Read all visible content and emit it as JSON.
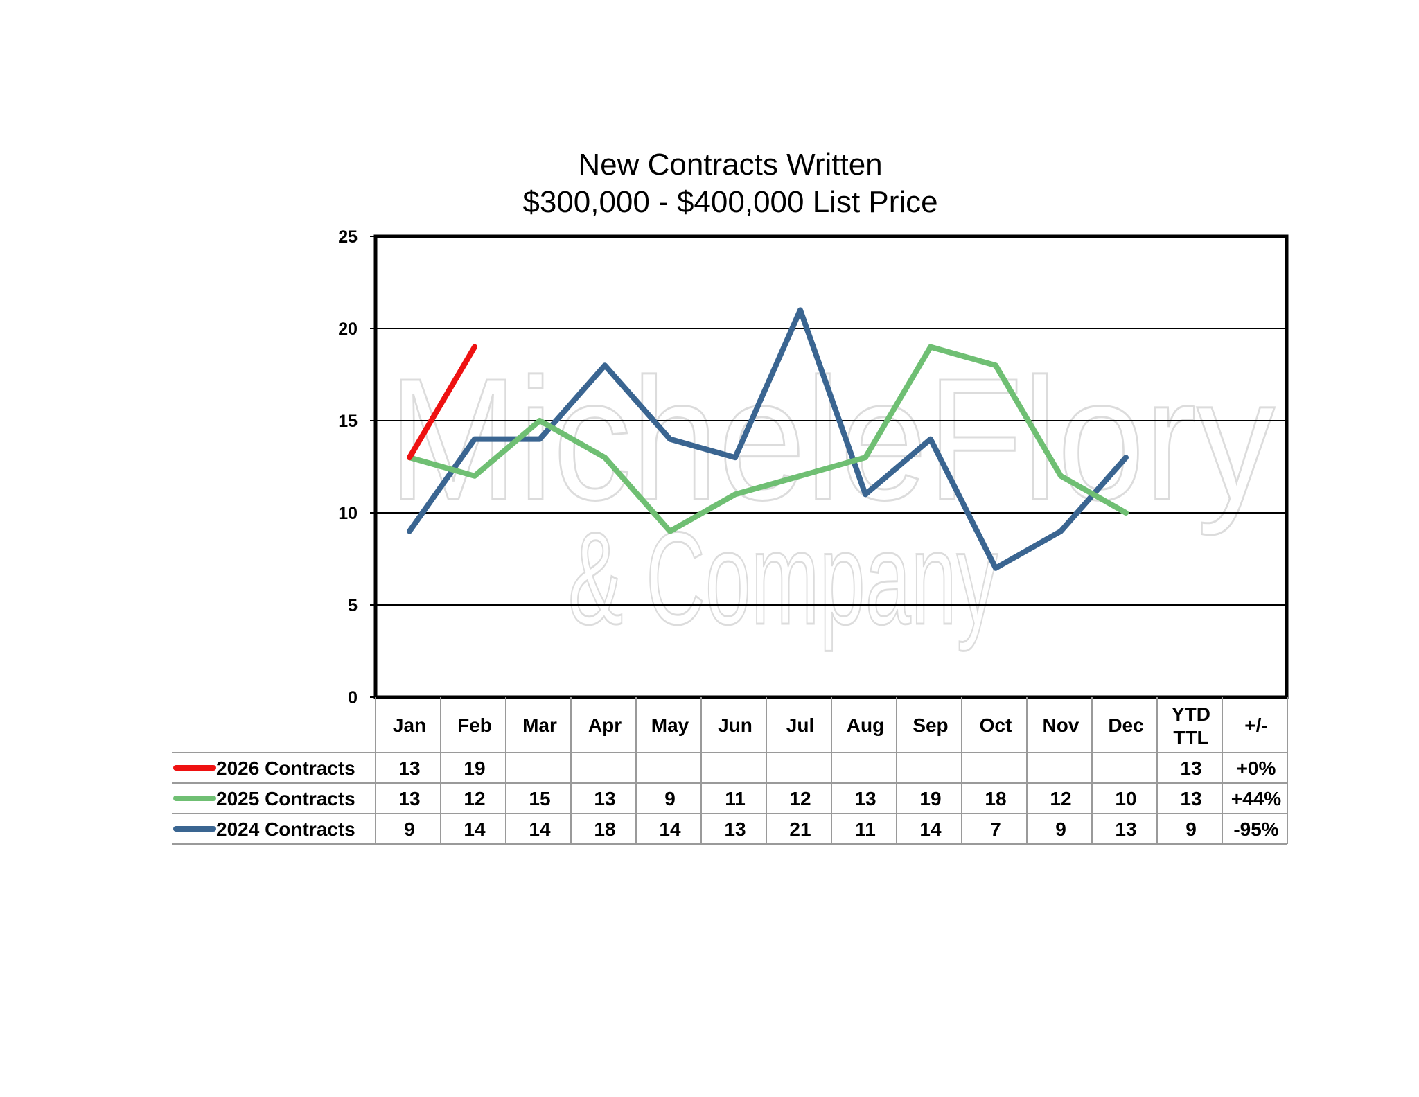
{
  "chart_data": {
    "type": "line",
    "title": "New Contracts Written",
    "subtitle": "$300,000 - $400,000 List Price",
    "categories": [
      "Jan",
      "Feb",
      "Mar",
      "Apr",
      "May",
      "Jun",
      "Jul",
      "Aug",
      "Sep",
      "Oct",
      "Nov",
      "Dec"
    ],
    "ylim": [
      0,
      25
    ],
    "yticks": [
      0,
      5,
      10,
      15,
      20,
      25
    ],
    "grid": true,
    "legend": "left of data table",
    "series": [
      {
        "name": "2026 Contracts",
        "color": "#ee1111",
        "values": [
          13,
          19,
          null,
          null,
          null,
          null,
          null,
          null,
          null,
          null,
          null,
          null
        ],
        "ytd": "13",
        "change": "+0%"
      },
      {
        "name": "2025 Contracts",
        "color": "#6fbf73",
        "values": [
          13,
          12,
          15,
          13,
          9,
          11,
          12,
          13,
          19,
          18,
          12,
          10
        ],
        "ytd": "13",
        "change": "+44%"
      },
      {
        "name": "2024 Contracts",
        "color": "#3a6591",
        "values": [
          9,
          14,
          14,
          18,
          14,
          13,
          21,
          11,
          14,
          7,
          9,
          13
        ],
        "ytd": "9",
        "change": "-95%"
      }
    ],
    "table_extra_headers": {
      "ytd_line1": "YTD",
      "ytd_line2": "TTL",
      "change": "+/-"
    }
  },
  "watermark": {
    "line1": "MicheleFlory",
    "line2": "& Company"
  }
}
